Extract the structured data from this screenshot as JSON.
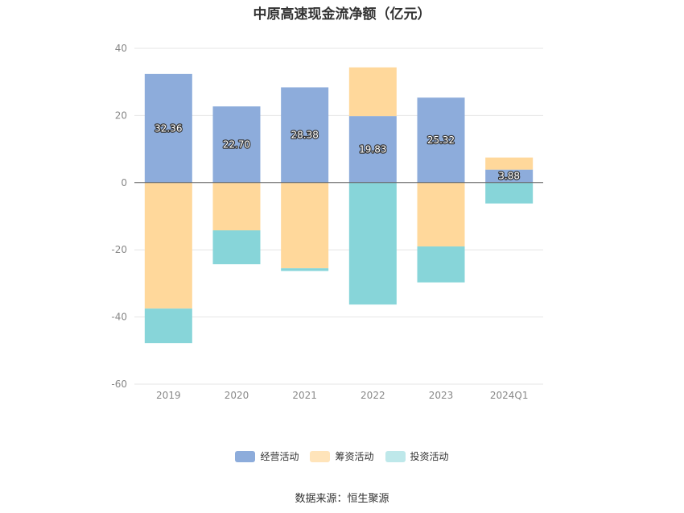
{
  "chart_data": {
    "type": "bar",
    "stacked": true,
    "title": "中原高速现金流净额（亿元）",
    "categories": [
      "2019",
      "2020",
      "2021",
      "2022",
      "2023",
      "2024Q1"
    ],
    "series": [
      {
        "name": "经营活动",
        "color": "#8dacdb",
        "values": [
          32.36,
          22.7,
          28.38,
          19.83,
          25.32,
          3.88
        ],
        "labels": [
          "32.36",
          "22.70",
          "28.38",
          "19.83",
          "25.32",
          "3.88"
        ]
      },
      {
        "name": "筹资活动",
        "color": "#ffd89b",
        "values": [
          -37.5,
          -14.2,
          -25.5,
          14.5,
          -19.0,
          3.6
        ]
      },
      {
        "name": "投资活动",
        "color": "#87d5d9",
        "values": [
          -10.3,
          -10.1,
          -0.8,
          -36.3,
          -10.7,
          -6.2
        ]
      }
    ],
    "legend_colors": [
      "#8dacdb",
      "#ffe4ba",
      "#bee8ea"
    ],
    "ylim": [
      -60,
      40
    ],
    "yticks": [
      "40",
      "20",
      "0",
      "-20",
      "-40",
      "-60"
    ],
    "ytick_values": [
      40,
      20,
      0,
      -20,
      -40,
      -60
    ],
    "grid": true,
    "legend_position": "bottom",
    "source": "数据来源：恒生聚源"
  }
}
